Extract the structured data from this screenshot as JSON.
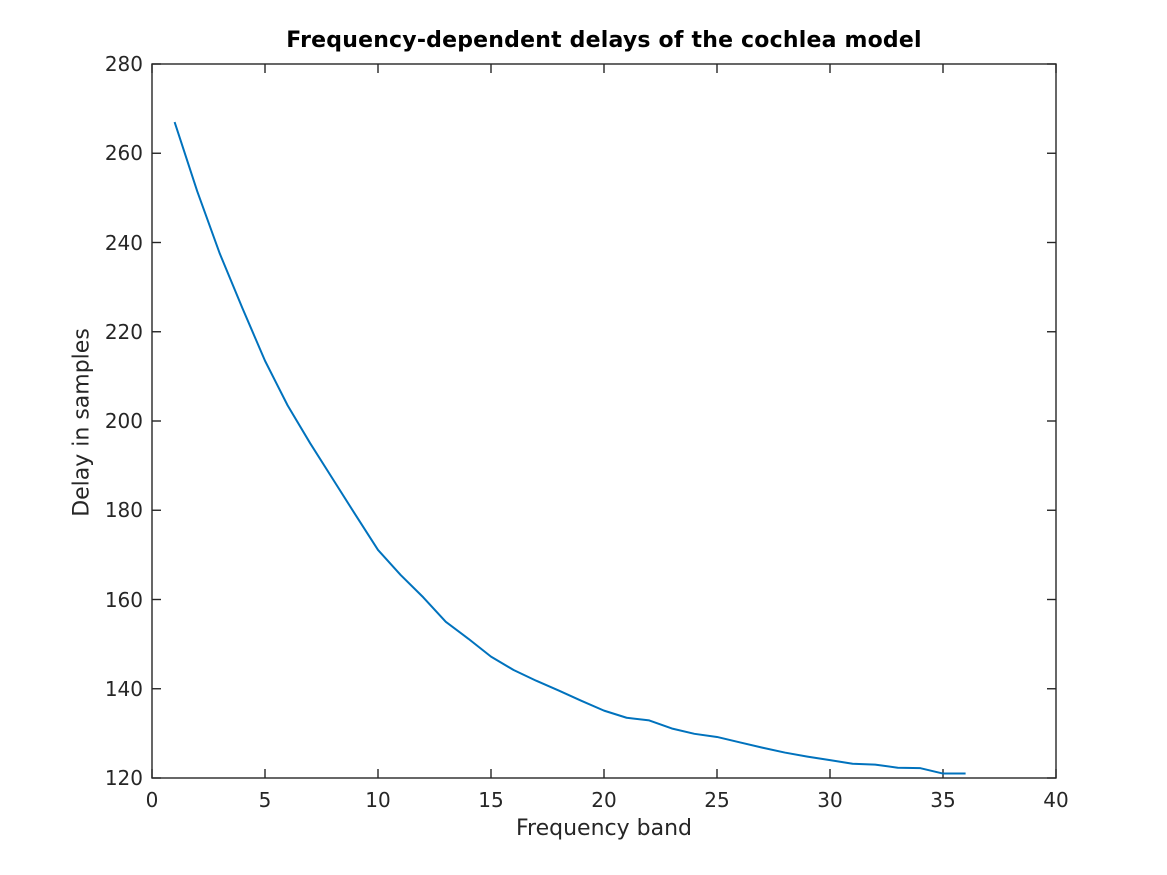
{
  "figure": {
    "title": "Frequency-dependent delays of the cochlea model",
    "xlabel": "Frequency band",
    "ylabel": "Delay in samples"
  },
  "chart_data": {
    "type": "line",
    "title": "Frequency-dependent delays of the cochlea model",
    "xlabel": "Frequency band",
    "ylabel": "Delay in samples",
    "x": [
      1,
      2,
      3,
      4,
      5,
      6,
      7,
      8,
      9,
      10,
      11,
      12,
      13,
      14,
      15,
      16,
      17,
      18,
      19,
      20,
      21,
      22,
      23,
      24,
      25,
      26,
      27,
      28,
      29,
      30,
      31,
      32,
      33,
      34,
      35,
      36
    ],
    "y": [
      267,
      251.5,
      237.5,
      225.3,
      213.5,
      203.5,
      195,
      187,
      179,
      171.1,
      165.5,
      160.5,
      155,
      151.2,
      147.2,
      144.2,
      141.8,
      139.6,
      137.3,
      135.1,
      133.5,
      132.9,
      131.1,
      129.9,
      129.2,
      128,
      126.8,
      125.7,
      124.8,
      124,
      123.2,
      123,
      122.3,
      122.2,
      121,
      121
    ],
    "xlim": [
      0,
      40
    ],
    "ylim": [
      120,
      280
    ],
    "xticks": [
      0,
      5,
      10,
      15,
      20,
      25,
      30,
      35,
      40
    ],
    "yticks": [
      120,
      140,
      160,
      180,
      200,
      220,
      240,
      260,
      280
    ],
    "grid": false,
    "legend": null,
    "box": true,
    "line_color": "#0072BD",
    "axis_color": "#262626",
    "tick_label_color": "#262626",
    "title_color": "#000000",
    "background_color": "#ffffff"
  }
}
